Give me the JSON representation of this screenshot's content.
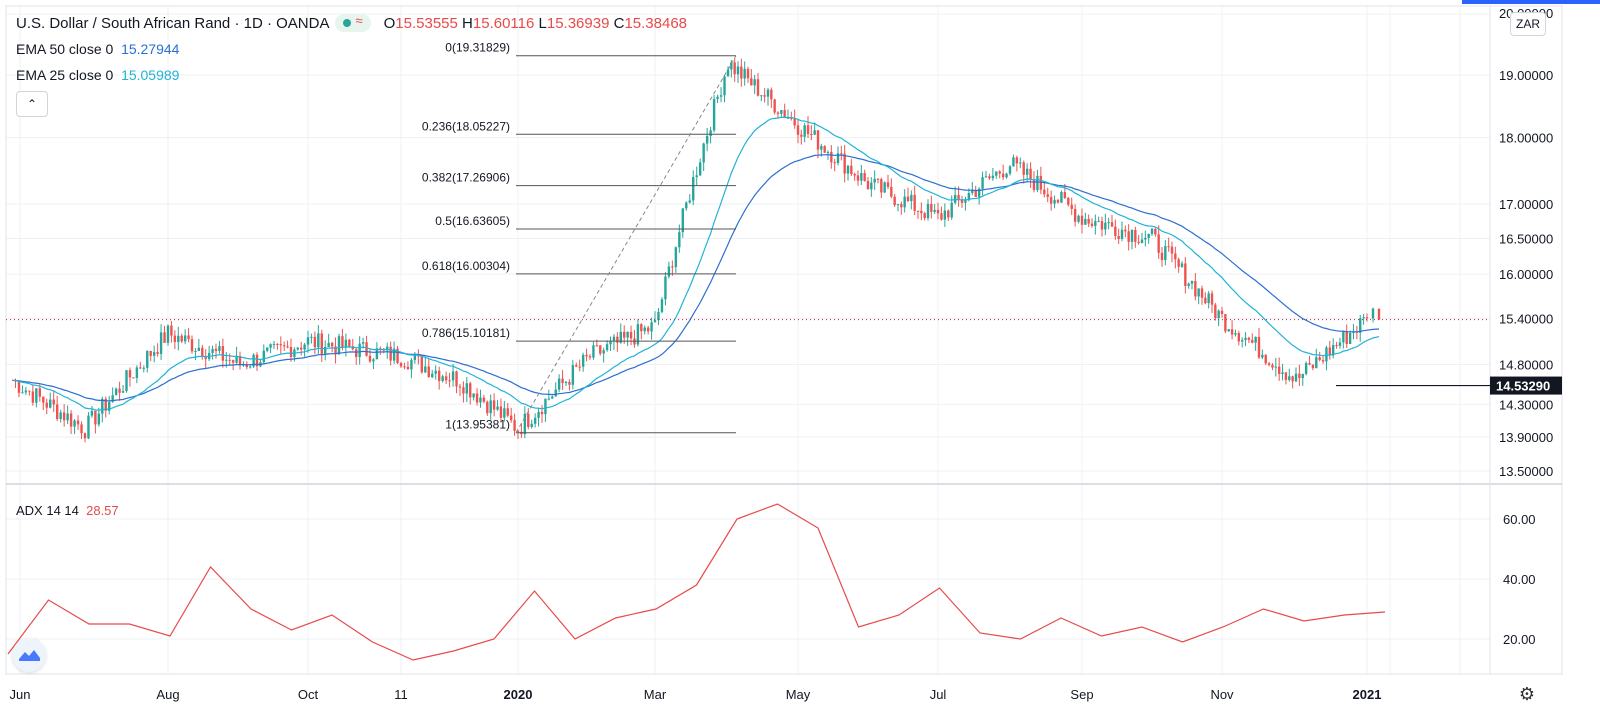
{
  "header": {
    "symbol_title": "U.S. Dollar / South African Rand · 1D · OANDA",
    "ohlc": {
      "o_label": "O",
      "o": "15.53555",
      "h_label": "H",
      "h": "15.60116",
      "l_label": "L",
      "l": "15.36939",
      "c_label": "C",
      "c": "15.38468"
    }
  },
  "indicators": {
    "ema50": {
      "label": "EMA 50 close 0",
      "value": "15.27944",
      "color": "#2c6fd1"
    },
    "ema25": {
      "label": "EMA 25 close 0",
      "value": "15.05989",
      "color": "#21b3d6"
    },
    "adx": {
      "label": "ADX 14 14",
      "value": "28.57",
      "color": "#e84a4a"
    }
  },
  "toolbar": {
    "collapse_icon": "chevron-up-icon",
    "currency_label": "ZAR",
    "settings_icon": "gear-icon",
    "logo_icon": "tradingview-logo-icon"
  },
  "chart_data": {
    "type": "candlestick",
    "price_axis": {
      "scale": "log",
      "ticks": [
        "20.00000",
        "19.00000",
        "18.00000",
        "17.00000",
        "16.50000",
        "16.00000",
        "15.40000",
        "14.80000",
        "14.30000",
        "13.90000",
        "13.50000"
      ],
      "tick_values": [
        20.0,
        19.0,
        18.0,
        17.0,
        16.5,
        16.0,
        15.4,
        14.8,
        14.3,
        13.9,
        13.5
      ],
      "current_price_line": 15.38468,
      "marker_label": "14.53290",
      "marker_value": 14.5329
    },
    "time_axis": {
      "ticks": [
        "Jun",
        "Aug",
        "Oct",
        "11",
        "2020",
        "Mar",
        "May",
        "Jul",
        "Sep",
        "Nov",
        "2021"
      ]
    },
    "close_path": [
      [
        "Jun",
        14.6
      ],
      [
        "Jul",
        14.0
      ],
      [
        "Aug",
        15.2
      ],
      [
        "Sep",
        14.8
      ],
      [
        "Oct",
        15.1
      ],
      [
        "11",
        14.9
      ],
      [
        "Dec",
        14.6
      ],
      [
        "2020",
        14.0
      ],
      [
        "Feb",
        14.9
      ],
      [
        "Mar",
        15.3
      ],
      [
        "Apr",
        19.2
      ],
      [
        "May",
        18.2
      ],
      [
        "Jun",
        17.3
      ],
      [
        "Jul",
        16.8
      ],
      [
        "Aug",
        17.6
      ],
      [
        "Sep",
        16.8
      ],
      [
        "Oct",
        16.5
      ],
      [
        "Nov",
        15.4
      ],
      [
        "Dec",
        14.6
      ],
      [
        "2021",
        15.4
      ]
    ],
    "fibonacci": {
      "levels": [
        {
          "label": "0(19.31829)",
          "value": 19.31829
        },
        {
          "label": "0.236(18.05227)",
          "value": 18.05227
        },
        {
          "label": "0.382(17.26906)",
          "value": 17.26906
        },
        {
          "label": "0.5(16.63605)",
          "value": 16.63605
        },
        {
          "label": "0.618(16.00304)",
          "value": 16.00304
        },
        {
          "label": "0.786(15.10181)",
          "value": 15.10181
        },
        {
          "label": "1(13.95381)",
          "value": 13.95381
        }
      ]
    },
    "adx": {
      "ticks": [
        "60.00",
        "40.00",
        "20.00"
      ],
      "tick_values": [
        60,
        40,
        20
      ],
      "path": [
        [
          0,
          15
        ],
        [
          2,
          33
        ],
        [
          4,
          25
        ],
        [
          6,
          25
        ],
        [
          8,
          21
        ],
        [
          10,
          44
        ],
        [
          12,
          30
        ],
        [
          14,
          23
        ],
        [
          16,
          28
        ],
        [
          18,
          19
        ],
        [
          20,
          13
        ],
        [
          22,
          16
        ],
        [
          24,
          20
        ],
        [
          26,
          36
        ],
        [
          28,
          20
        ],
        [
          30,
          27
        ],
        [
          32,
          30
        ],
        [
          34,
          38
        ],
        [
          36,
          60
        ],
        [
          38,
          65
        ],
        [
          40,
          57
        ],
        [
          42,
          24
        ],
        [
          44,
          28
        ],
        [
          46,
          37
        ],
        [
          48,
          22
        ],
        [
          50,
          20
        ],
        [
          52,
          27
        ],
        [
          54,
          21
        ],
        [
          56,
          24
        ],
        [
          58,
          19
        ],
        [
          60,
          24
        ],
        [
          62,
          30
        ],
        [
          64,
          26
        ],
        [
          66,
          28
        ],
        [
          68,
          29
        ]
      ]
    },
    "grid": true,
    "legend_position": "top-left"
  }
}
